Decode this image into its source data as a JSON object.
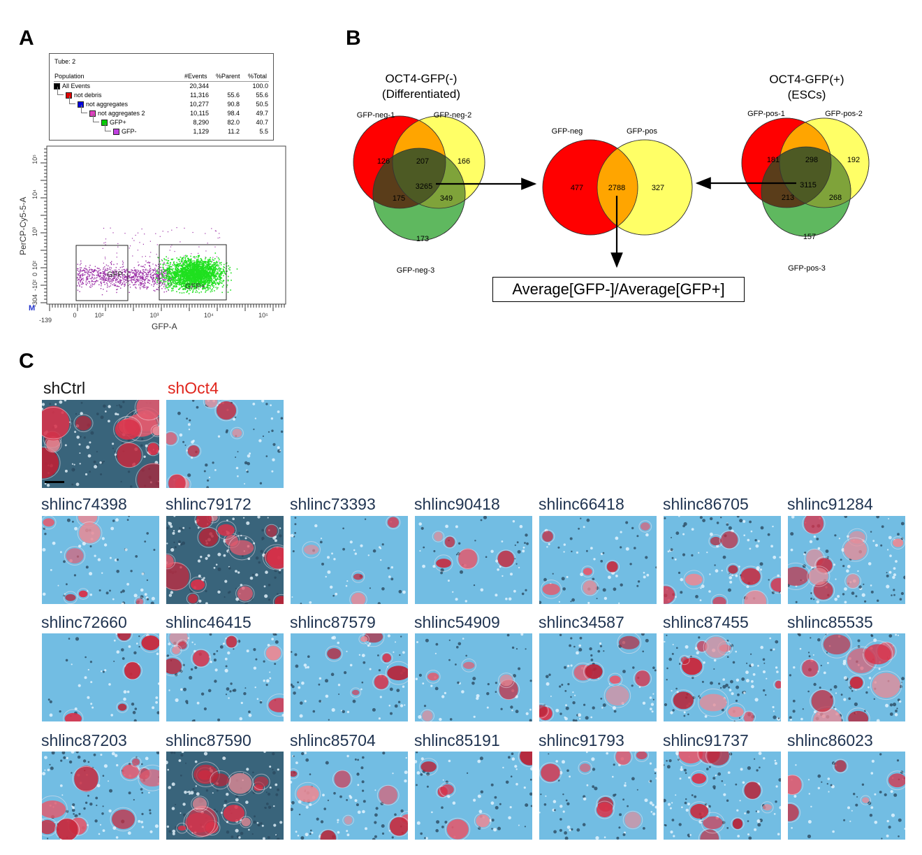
{
  "panels": {
    "a": "A",
    "b": "B",
    "c": "C"
  },
  "flow_table": {
    "tube": "Tube:  2",
    "headers": [
      "Population",
      "#Events",
      "%Parent",
      "%Total"
    ],
    "rows": [
      {
        "name": "All Events",
        "events": "20,344",
        "parent": "",
        "total": "100.0",
        "color": "#000000"
      },
      {
        "name": "not debris",
        "events": "11,316",
        "parent": "55.6",
        "total": "55.6",
        "color": "#e00000"
      },
      {
        "name": "not aggregates",
        "events": "10,277",
        "parent": "90.8",
        "total": "50.5",
        "color": "#0000e0"
      },
      {
        "name": "not aggregates 2",
        "events": "10,115",
        "parent": "98.4",
        "total": "49.7",
        "color": "#e040c0"
      },
      {
        "name": "GFP+",
        "events": "8,290",
        "parent": "82.0",
        "total": "40.7",
        "color": "#00d000"
      },
      {
        "name": "GFP-",
        "events": "1,129",
        "parent": "11.2",
        "total": "5.5",
        "color": "#c040e0"
      }
    ]
  },
  "scatter": {
    "ylabel": "PerCP-Cy5-5-A",
    "xlabel": "GFP-A",
    "y_ticks": [
      "10⁵",
      "10⁴",
      "10³",
      "10²",
      "0",
      "-10²",
      "-304"
    ],
    "x_ticks": [
      "-139",
      "0",
      "10²",
      "10³",
      "10⁴",
      "10⁵"
    ],
    "gate_neg": "GFP-",
    "gate_pos": "GFP+",
    "corner": "M",
    "colors": {
      "neg": "#9b2fa6",
      "pos": "#1fe01f"
    }
  },
  "venn_neg": {
    "title1": "OCT4-GFP(-)",
    "title2": "(Differentiated)",
    "labels": [
      "GFP-neg-1",
      "GFP-neg-2",
      "GFP-neg-3"
    ],
    "values": {
      "a": "126",
      "ab": "207",
      "b": "166",
      "abc": "3265",
      "ac": "175",
      "bc": "349",
      "c": "173"
    }
  },
  "venn_mid": {
    "labels": [
      "GFP-neg",
      "GFP-pos"
    ],
    "values": {
      "a": "477",
      "ab": "2788",
      "b": "327"
    }
  },
  "venn_pos": {
    "title1": "OCT4-GFP(+)",
    "title2": "(ESCs)",
    "labels": [
      "GFP-pos-1",
      "GFP-pos-2",
      "GFP-pos-3"
    ],
    "values": {
      "a": "181",
      "ab": "298",
      "b": "192",
      "abc": "3115",
      "ac": "213",
      "bc": "268",
      "c": "157"
    }
  },
  "venn_colors": {
    "red": "#ff0000",
    "yellow": "#ffff66",
    "green": "#5fb85f",
    "orange": "#ffa500",
    "dark": "#4d5a24"
  },
  "formula": "Average[GFP-]/Average[GFP+]",
  "controls": [
    {
      "label": "shCtrl",
      "style": "blk",
      "density": 0.85
    },
    {
      "label": "shOct4",
      "style": "red",
      "density": 0.35
    }
  ],
  "rows": [
    [
      "shlinc74398",
      "shlinc79172",
      "shlinc73393",
      "shlinc90418",
      "shlinc66418",
      "shlinc86705",
      "shlinc91284"
    ],
    [
      "shlinc72660",
      "shlinc46415",
      "shlinc87579",
      "shlinc54909",
      "shlinc34587",
      "shlinc87455",
      "shlinc85535"
    ],
    [
      "shlinc87203",
      "shlinc87590",
      "shlinc85704",
      "shlinc85191",
      "shlinc91793",
      "shlinc91737",
      "shlinc86023"
    ]
  ],
  "row_density": [
    [
      0.35,
      0.9,
      0.15,
      0.2,
      0.25,
      0.5,
      0.55
    ],
    [
      0.2,
      0.45,
      0.35,
      0.2,
      0.4,
      0.6,
      0.6
    ],
    [
      0.6,
      0.75,
      0.45,
      0.3,
      0.35,
      0.55,
      0.2
    ]
  ]
}
